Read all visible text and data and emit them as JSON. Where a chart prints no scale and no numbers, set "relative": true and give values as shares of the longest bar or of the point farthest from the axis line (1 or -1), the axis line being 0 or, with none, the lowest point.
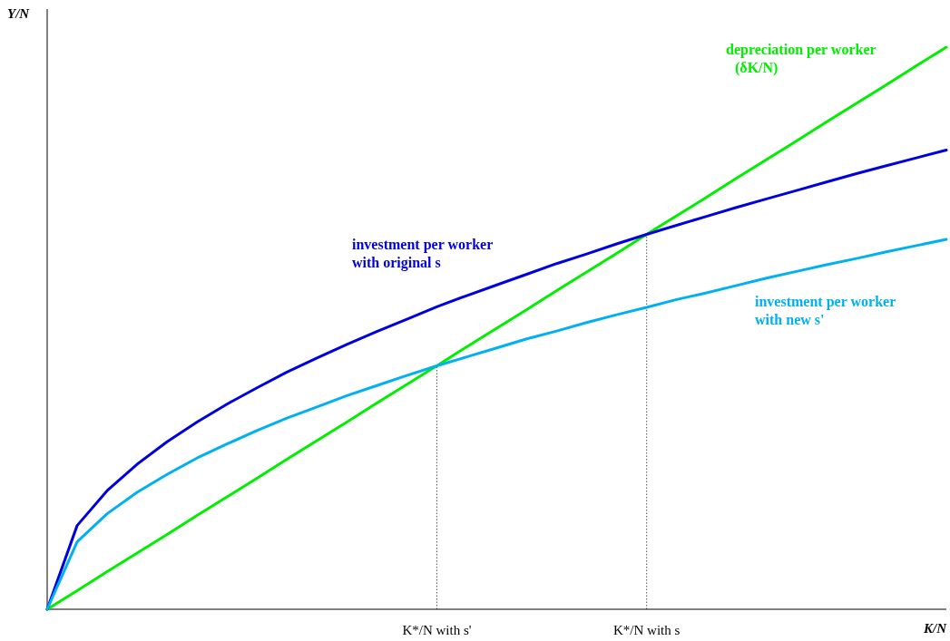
{
  "chart_data": {
    "type": "line",
    "relative": true,
    "xlabel": "K/N",
    "ylabel": "Y/N",
    "categories": [
      null,
      null,
      null,
      null,
      null,
      null,
      null,
      null,
      null,
      null,
      null,
      null,
      null,
      "K*/N with s'",
      null,
      null,
      null,
      null,
      null,
      null,
      "K*/N with s",
      null,
      null,
      null,
      null,
      null,
      null,
      null,
      null,
      null,
      null
    ],
    "grid": false,
    "line_style": "solid",
    "series": [
      {
        "name": "depreciation per worker (δK/N)",
        "color": "#00ee00",
        "values": [
          0,
          0.033,
          0.067,
          0.1,
          0.133,
          0.167,
          0.2,
          0.233,
          0.267,
          0.3,
          0.333,
          0.367,
          0.4,
          0.433,
          0.467,
          0.5,
          0.533,
          0.567,
          0.6,
          0.633,
          0.667,
          0.7,
          0.733,
          0.767,
          0.8,
          0.833,
          0.867,
          0.9,
          0.933,
          0.967,
          1
        ]
      },
      {
        "name": "investment per worker with original s",
        "color": "#0000dd",
        "values": [
          0,
          0.149,
          0.211,
          0.258,
          0.298,
          0.333,
          0.365,
          0.394,
          0.422,
          0.447,
          0.471,
          0.494,
          0.516,
          0.538,
          0.558,
          0.577,
          0.596,
          0.615,
          0.632,
          0.65,
          0.667,
          0.683,
          0.699,
          0.715,
          0.73,
          0.745,
          0.76,
          0.775,
          0.789,
          0.803,
          0.817
        ]
      },
      {
        "name": "investment per worker with new s'",
        "color": "#00b0f0",
        "values": [
          0,
          0.12,
          0.17,
          0.208,
          0.24,
          0.269,
          0.294,
          0.318,
          0.34,
          0.36,
          0.38,
          0.398,
          0.416,
          0.433,
          0.449,
          0.465,
          0.481,
          0.495,
          0.51,
          0.524,
          0.537,
          0.551,
          0.563,
          0.576,
          0.589,
          0.601,
          0.613,
          0.624,
          0.636,
          0.647,
          0.658
        ]
      }
    ],
    "ref_lines": [
      {
        "axis": "x",
        "value": "K*/N with s'",
        "color": "#555555",
        "line_style": "dotted"
      },
      {
        "axis": "x",
        "value": "K*/N with s",
        "color": "#555555",
        "line_style": "dotted"
      }
    ]
  }
}
